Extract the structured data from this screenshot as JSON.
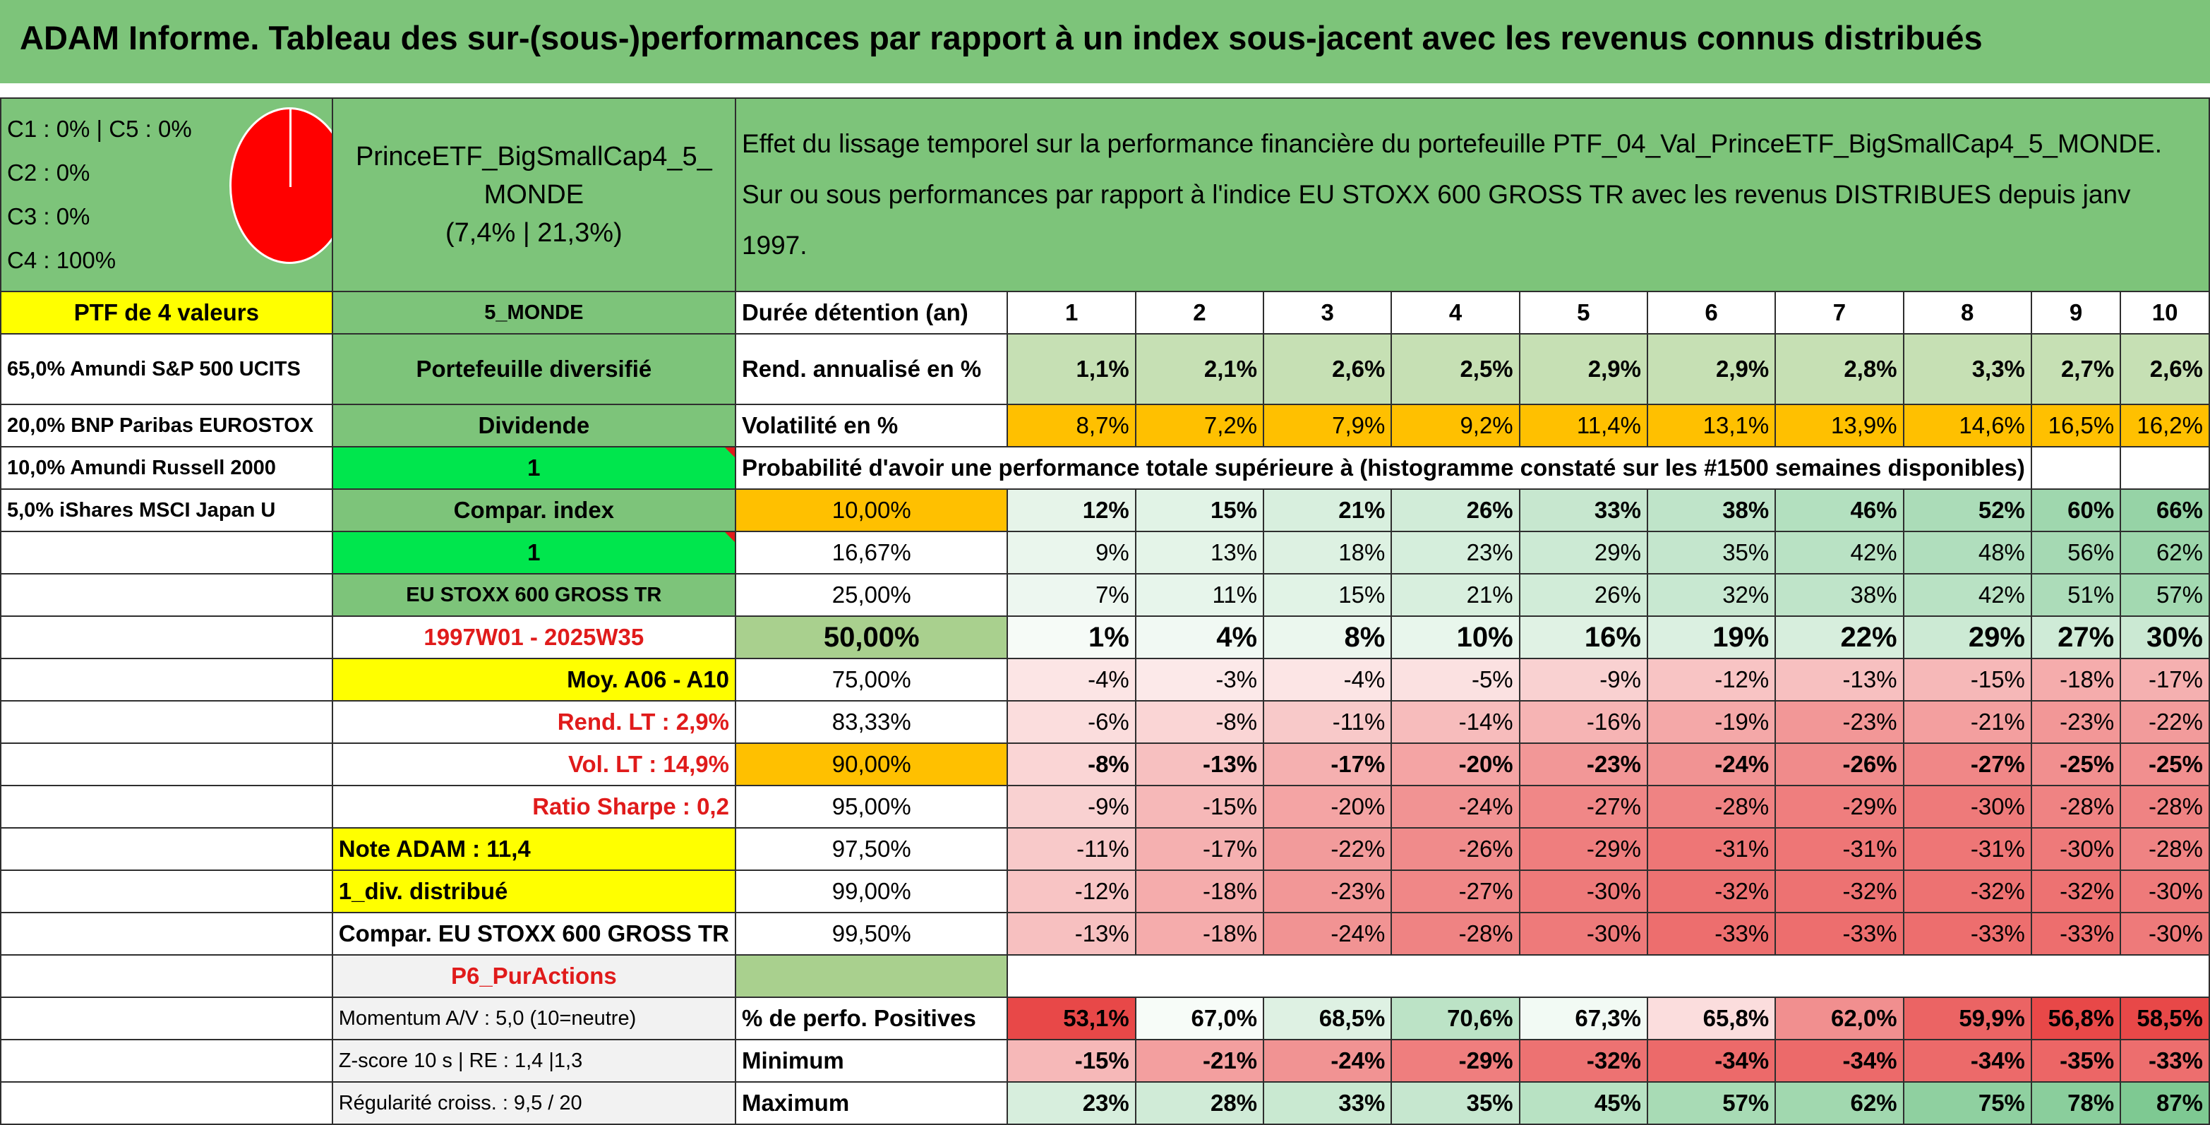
{
  "title": "ADAM Informe. Tableau des sur-(sous-)performances par rapport à un index sous-jacent avec les revenus connus distribués",
  "allocation": {
    "lines": [
      "C1 : 0% | C5 : 0%",
      "C2 : 0%",
      "C3 : 0%",
      "C4 : 100%"
    ],
    "pie_color": "#ff0000"
  },
  "portfolio": {
    "name_line1": "PrinceETF_BigSmallCap4_5_",
    "name_line2": "MONDE",
    "stats": "(7,4% | 21,3%)"
  },
  "description": "Effet du lissage temporel sur la performance financière du portefeuille PTF_04_Val_PrinceETF_BigSmallCap4_5_MONDE. Sur ou sous performances par rapport à l'indice EU STOXX 600 GROSS TR avec les revenus DISTRIBUES depuis janv 1997.",
  "left": {
    "ptf_header": "PTF de 4 valeurs",
    "holdings": [
      "65,0% Amundi S&P 500 UCITS",
      "20,0% BNP Paribas EUROSTOX",
      "10,0% Amundi Russell 2000",
      "5,0% iShares MSCI Japan U"
    ]
  },
  "mid": {
    "region": "5_MONDE",
    "type": "Portefeuille diversifié",
    "dividende_label": "Dividende",
    "dividende_value": "1",
    "compar_label": "Compar. index",
    "compar_value": "1",
    "index_name": "EU STOXX 600 GROSS TR",
    "period": "1997W01 - 2025W35",
    "moy": "Moy. A06 - A10",
    "rend_lt": "Rend. LT : 2,9%",
    "vol_lt": "Vol. LT : 14,9%",
    "sharpe": "Ratio Sharpe : 0,2",
    "note": "Note ADAM : 11,4",
    "div": "1_div. distribué",
    "compar_eu": "Compar. EU STOXX 600 GROSS TR",
    "p6": "P6_PurActions",
    "momentum": "Momentum A/V : 5,0 (10=neutre)",
    "zscore": "Z-score 10 s | RE : 1,4 |1,3",
    "regularite": "Régularité croiss. : 9,5 / 20"
  },
  "header": {
    "label": "Durée détention (an)",
    "years": [
      "1",
      "2",
      "3",
      "4",
      "5",
      "6",
      "7",
      "8",
      "9",
      "10"
    ]
  },
  "rend": {
    "label": "Rend. annualisé en %",
    "values": [
      "1,1%",
      "2,1%",
      "2,6%",
      "2,5%",
      "2,9%",
      "2,9%",
      "2,8%",
      "3,3%",
      "2,7%",
      "2,6%"
    ]
  },
  "vol": {
    "label": "Volatilité en %",
    "values": [
      "8,7%",
      "7,2%",
      "7,9%",
      "9,2%",
      "11,4%",
      "13,1%",
      "13,9%",
      "14,6%",
      "16,5%",
      "16,2%"
    ]
  },
  "prob_title": "Probabilité d'avoir une performance totale supérieure à (histogramme constaté sur les #1500 semaines disponibles)",
  "prob_rows": [
    {
      "p": "10,00%",
      "values": [
        "12%",
        "15%",
        "21%",
        "26%",
        "33%",
        "38%",
        "46%",
        "52%",
        "60%",
        "66%"
      ]
    },
    {
      "p": "16,67%",
      "values": [
        "9%",
        "13%",
        "18%",
        "23%",
        "29%",
        "35%",
        "42%",
        "48%",
        "56%",
        "62%"
      ]
    },
    {
      "p": "25,00%",
      "values": [
        "7%",
        "11%",
        "15%",
        "21%",
        "26%",
        "32%",
        "38%",
        "42%",
        "51%",
        "57%"
      ]
    },
    {
      "p": "50,00%",
      "values": [
        "1%",
        "4%",
        "8%",
        "10%",
        "16%",
        "19%",
        "22%",
        "29%",
        "27%",
        "30%"
      ]
    },
    {
      "p": "75,00%",
      "values": [
        "-4%",
        "-3%",
        "-4%",
        "-5%",
        "-9%",
        "-12%",
        "-13%",
        "-15%",
        "-18%",
        "-17%"
      ]
    },
    {
      "p": "83,33%",
      "values": [
        "-6%",
        "-8%",
        "-11%",
        "-14%",
        "-16%",
        "-19%",
        "-23%",
        "-21%",
        "-23%",
        "-22%"
      ]
    },
    {
      "p": "90,00%",
      "values": [
        "-8%",
        "-13%",
        "-17%",
        "-20%",
        "-23%",
        "-24%",
        "-26%",
        "-27%",
        "-25%",
        "-25%"
      ]
    },
    {
      "p": "95,00%",
      "values": [
        "-9%",
        "-15%",
        "-20%",
        "-24%",
        "-27%",
        "-28%",
        "-29%",
        "-30%",
        "-28%",
        "-28%"
      ]
    },
    {
      "p": "97,50%",
      "values": [
        "-11%",
        "-17%",
        "-22%",
        "-26%",
        "-29%",
        "-31%",
        "-31%",
        "-31%",
        "-30%",
        "-28%"
      ]
    },
    {
      "p": "99,00%",
      "values": [
        "-12%",
        "-18%",
        "-23%",
        "-27%",
        "-30%",
        "-32%",
        "-32%",
        "-32%",
        "-32%",
        "-30%"
      ]
    },
    {
      "p": "99,50%",
      "values": [
        "-13%",
        "-18%",
        "-24%",
        "-28%",
        "-30%",
        "-33%",
        "-33%",
        "-33%",
        "-33%",
        "-30%"
      ]
    }
  ],
  "positives": {
    "label": "% de perfo. Positives",
    "values": [
      "53,1%",
      "67,0%",
      "68,5%",
      "70,6%",
      "67,3%",
      "65,8%",
      "62,0%",
      "59,9%",
      "56,8%",
      "58,5%"
    ]
  },
  "minimum": {
    "label": "Minimum",
    "values": [
      "-15%",
      "-21%",
      "-24%",
      "-29%",
      "-32%",
      "-34%",
      "-34%",
      "-34%",
      "-35%",
      "-33%"
    ]
  },
  "maximum": {
    "label": "Maximum",
    "values": [
      "23%",
      "28%",
      "33%",
      "35%",
      "45%",
      "57%",
      "62%",
      "75%",
      "78%",
      "87%"
    ]
  }
}
